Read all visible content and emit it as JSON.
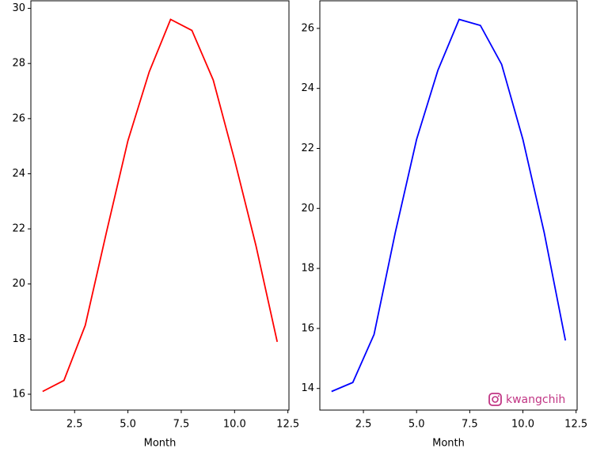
{
  "chart_data": [
    {
      "type": "line",
      "xlabel": "Month",
      "x": [
        1,
        2,
        3,
        4,
        5,
        6,
        7,
        8,
        9,
        10,
        11,
        12
      ],
      "series": [
        {
          "color": "#ff0000",
          "values": [
            16.1,
            16.5,
            18.5,
            21.9,
            25.2,
            27.7,
            29.6,
            29.2,
            27.4,
            24.5,
            21.4,
            17.9
          ]
        }
      ],
      "xlim": [
        0.45,
        12.55
      ],
      "ylim": [
        15.425,
        30.275
      ],
      "xticks": [
        2.5,
        {
          "value": 5,
          "label": "5.0"
        },
        7.5,
        {
          "value": 10,
          "label": "10.0"
        },
        12.5
      ],
      "yticks": [
        16,
        18,
        20,
        22,
        24,
        26,
        28,
        30
      ]
    },
    {
      "type": "line",
      "xlabel": "Month",
      "x": [
        1,
        2,
        3,
        4,
        5,
        6,
        7,
        8,
        9,
        10,
        11,
        12
      ],
      "series": [
        {
          "color": "#0000ff",
          "values": [
            13.9,
            14.2,
            15.8,
            19.2,
            22.3,
            24.6,
            26.3,
            26.1,
            24.8,
            22.3,
            19.2,
            15.6
          ]
        }
      ],
      "xlim": [
        0.45,
        12.55
      ],
      "ylim": [
        13.28,
        26.92
      ],
      "xticks": [
        2.5,
        {
          "value": 5,
          "label": "5.0"
        },
        7.5,
        {
          "value": 10,
          "label": "10.0"
        },
        12.5
      ],
      "yticks": [
        14,
        16,
        18,
        20,
        22,
        24,
        26
      ],
      "annotation": "kwangchih"
    }
  ]
}
